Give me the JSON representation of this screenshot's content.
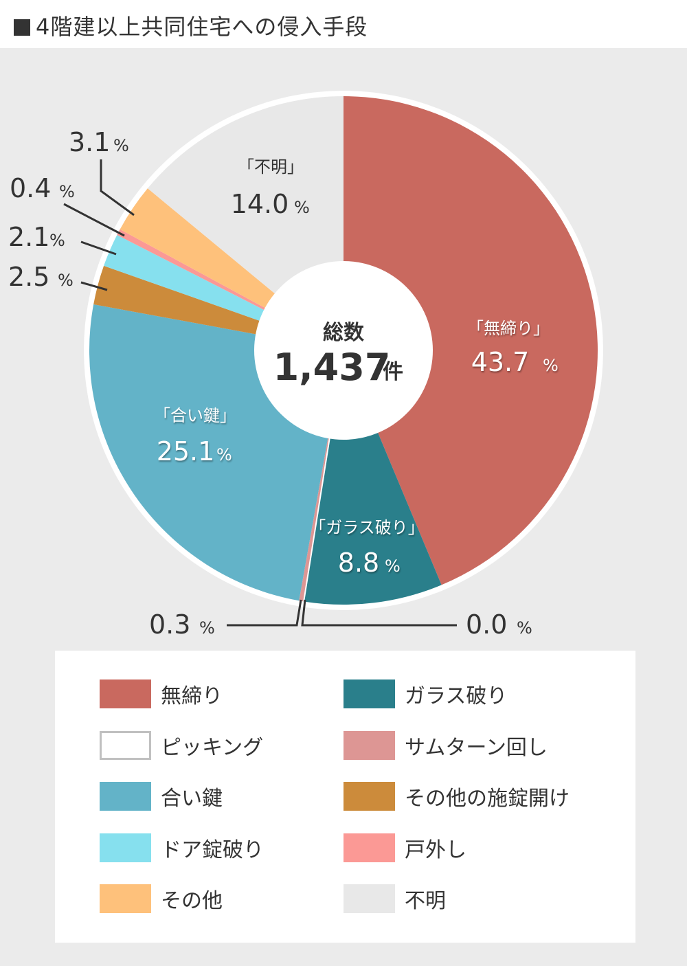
{
  "title": "4階建以上共同住宅への侵入手段",
  "center": {
    "label": "総数",
    "value": "1,437",
    "unit": "件"
  },
  "slices": [
    {
      "name": "無締り",
      "value": 43.7,
      "color": "#c9695f",
      "display": "43.7",
      "callout": "「無締り」"
    },
    {
      "name": "ガラス破り",
      "value": 8.8,
      "color": "#2a7f8b",
      "display": "8.8",
      "callout": "「ガラス破り」"
    },
    {
      "name": "ピッキング",
      "value": 0.0,
      "color": "#ffffff",
      "display": "0.0"
    },
    {
      "name": "サムターン回し",
      "value": 0.3,
      "color": "#dd9694",
      "display": "0.3"
    },
    {
      "name": "合い鍵",
      "value": 25.1,
      "color": "#63b3c8",
      "display": "25.1",
      "callout": "「合い鍵」"
    },
    {
      "name": "その他の施錠開け",
      "value": 2.5,
      "color": "#cc8b3b",
      "display": "2.5"
    },
    {
      "name": "ドア錠破り",
      "value": 2.1,
      "color": "#86e0ee",
      "display": "2.1"
    },
    {
      "name": "戸外し",
      "value": 0.4,
      "color": "#fb9995",
      "display": "0.4"
    },
    {
      "name": "その他",
      "value": 3.1,
      "color": "#fec17b",
      "display": "3.1"
    },
    {
      "name": "不明",
      "value": 14.0,
      "color": "#e8e8e8",
      "display": "14.0",
      "callout": "「不明」"
    }
  ],
  "percent_sign": "%",
  "legend": [
    {
      "label": "無締り",
      "color": "#c9695f"
    },
    {
      "label": "ガラス破り",
      "color": "#2a7f8b"
    },
    {
      "label": "ピッキング",
      "color": "#ffffff",
      "border": "#c0c0c0"
    },
    {
      "label": "サムターン回し",
      "color": "#dd9694"
    },
    {
      "label": "合い鍵",
      "color": "#63b3c8"
    },
    {
      "label": "その他の施錠開け",
      "color": "#cc8b3b"
    },
    {
      "label": "ドア錠破り",
      "color": "#86e0ee"
    },
    {
      "label": "戸外し",
      "color": "#fb9995"
    },
    {
      "label": "その他",
      "color": "#fec17b"
    },
    {
      "label": "不明",
      "color": "#e8e8e8"
    }
  ],
  "chart_data": {
    "type": "pie",
    "title": "4階建以上共同住宅への侵入手段",
    "subtitle": "総数 1,437件",
    "donut": true,
    "categories": [
      "無締り",
      "ガラス破り",
      "ピッキング",
      "サムターン回し",
      "合い鍵",
      "その他の施錠開け",
      "ドア錠破り",
      "戸外し",
      "その他",
      "不明"
    ],
    "values": [
      43.7,
      8.8,
      0.0,
      0.3,
      25.1,
      2.5,
      2.1,
      0.4,
      3.1,
      14.0
    ],
    "unit": "%",
    "total_count": 1437,
    "legend_position": "bottom"
  }
}
